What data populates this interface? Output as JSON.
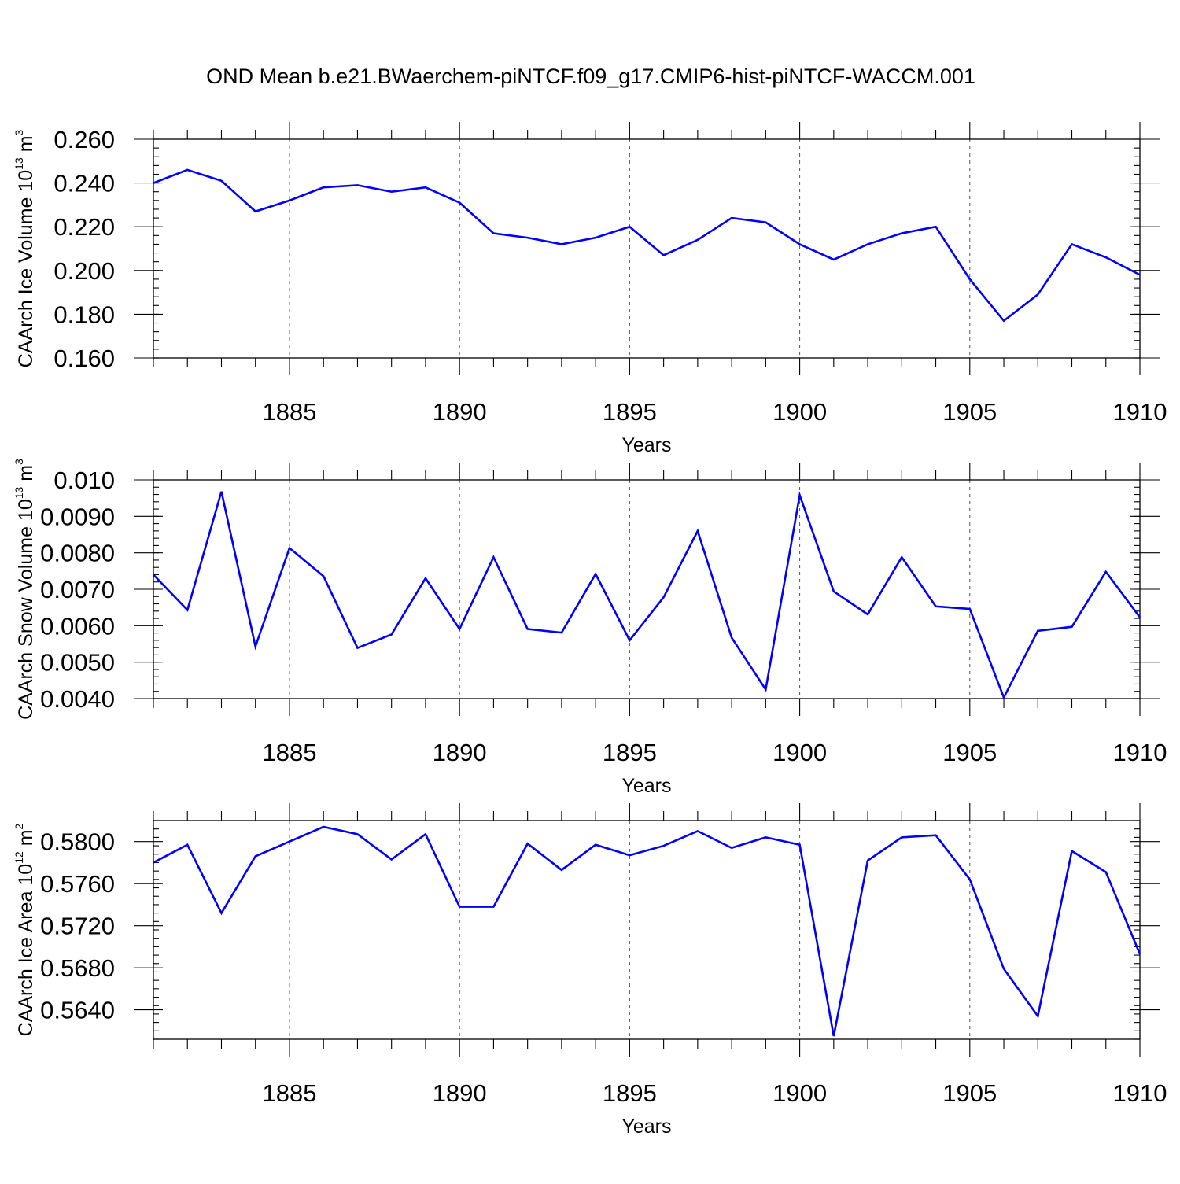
{
  "title": "OND Mean b.e21.BWaerchem-piNTCF.f09_g17.CMIP6-hist-piNTCF-WACCM.001",
  "line_color": "#0000FF",
  "chart_data": [
    {
      "type": "line",
      "title": "OND Mean b.e21.BWaerchem-piNTCF.f09_g17.CMIP6-hist-piNTCF-WACCM.001",
      "xlabel": "Years",
      "ylabel": "CAArch Ice Volume 10",
      "ylabel_exp": "13",
      "ylabel_unit": " m",
      "ylabel_unit_exp": "3",
      "xlim": [
        1881,
        1910
      ],
      "ylim": [
        0.16,
        0.26
      ],
      "x_ticks": [
        1885,
        1890,
        1895,
        1900,
        1905,
        1910
      ],
      "y_ticks": [
        0.16,
        0.18,
        0.2,
        0.22,
        0.24,
        0.26
      ],
      "y_tick_labels": [
        "0.160",
        "0.180",
        "0.200",
        "0.220",
        "0.240",
        "0.260"
      ],
      "y_minor_step": 0.004,
      "grid": "vertical dashed at major x ticks",
      "x": [
        1881,
        1882,
        1883,
        1884,
        1885,
        1886,
        1887,
        1888,
        1889,
        1890,
        1891,
        1892,
        1893,
        1894,
        1895,
        1896,
        1897,
        1898,
        1899,
        1900,
        1901,
        1902,
        1903,
        1904,
        1905,
        1906,
        1907,
        1908,
        1909,
        1910
      ],
      "values": [
        0.24,
        0.246,
        0.241,
        0.227,
        0.232,
        0.238,
        0.239,
        0.236,
        0.238,
        0.231,
        0.217,
        0.215,
        0.212,
        0.215,
        0.22,
        0.207,
        0.214,
        0.224,
        0.222,
        0.212,
        0.205,
        0.212,
        0.217,
        0.22,
        0.196,
        0.177,
        0.189,
        0.212,
        0.206,
        0.198
      ]
    },
    {
      "type": "line",
      "xlabel": "Years",
      "ylabel": "CAArch Snow Volume 10",
      "ylabel_exp": "13",
      "ylabel_unit": " m",
      "ylabel_unit_exp": "3",
      "xlim": [
        1881,
        1910
      ],
      "ylim": [
        0.004,
        0.01
      ],
      "x_ticks": [
        1885,
        1890,
        1895,
        1900,
        1905,
        1910
      ],
      "y_ticks": [
        0.004,
        0.005,
        0.006,
        0.007,
        0.008,
        0.009,
        0.01
      ],
      "y_tick_labels": [
        "0.0040",
        "0.0050",
        "0.0060",
        "0.0070",
        "0.0080",
        "0.0090",
        "0.010"
      ],
      "y_minor_step": 0.0002,
      "grid": "vertical dashed at major x ticks",
      "x": [
        1881,
        1882,
        1883,
        1884,
        1885,
        1886,
        1887,
        1888,
        1889,
        1890,
        1891,
        1892,
        1893,
        1894,
        1895,
        1896,
        1897,
        1898,
        1899,
        1900,
        1901,
        1902,
        1903,
        1904,
        1905,
        1906,
        1907,
        1908,
        1909,
        1910
      ],
      "values": [
        0.0074,
        0.00643,
        0.00968,
        0.00543,
        0.00813,
        0.00736,
        0.00539,
        0.00576,
        0.0073,
        0.00591,
        0.00788,
        0.00591,
        0.00581,
        0.00742,
        0.0056,
        0.00678,
        0.0086,
        0.00567,
        0.00425,
        0.00958,
        0.00694,
        0.00631,
        0.00788,
        0.00653,
        0.00646,
        0.00403,
        0.00586,
        0.00597,
        0.00748,
        0.00623
      ]
    },
    {
      "type": "line",
      "xlabel": "Years",
      "ylabel": "CAArch Ice Area 10",
      "ylabel_exp": "12",
      "ylabel_unit": " m",
      "ylabel_unit_exp": "2",
      "xlim": [
        1881,
        1910
      ],
      "ylim": [
        0.5612,
        0.582
      ],
      "x_ticks": [
        1885,
        1890,
        1895,
        1900,
        1905,
        1910
      ],
      "y_ticks": [
        0.564,
        0.568,
        0.572,
        0.576,
        0.58
      ],
      "y_tick_labels": [
        "0.5640",
        "0.5680",
        "0.5720",
        "0.5760",
        "0.5800"
      ],
      "y_minor_step": 0.0008,
      "grid": "vertical dashed at major x ticks",
      "x": [
        1881,
        1882,
        1883,
        1884,
        1885,
        1886,
        1887,
        1888,
        1889,
        1890,
        1891,
        1892,
        1893,
        1894,
        1895,
        1896,
        1897,
        1898,
        1899,
        1900,
        1901,
        1902,
        1903,
        1904,
        1905,
        1906,
        1907,
        1908,
        1909,
        1910
      ],
      "values": [
        0.578,
        0.5797,
        0.5732,
        0.5786,
        0.58,
        0.5814,
        0.5807,
        0.5783,
        0.5807,
        0.5738,
        0.5738,
        0.5798,
        0.5773,
        0.5797,
        0.5787,
        0.5796,
        0.581,
        0.5794,
        0.5804,
        0.5797,
        0.5615,
        0.5782,
        0.5804,
        0.5806,
        0.5764,
        0.5679,
        0.5634,
        0.5791,
        0.5771,
        0.5693
      ]
    }
  ]
}
